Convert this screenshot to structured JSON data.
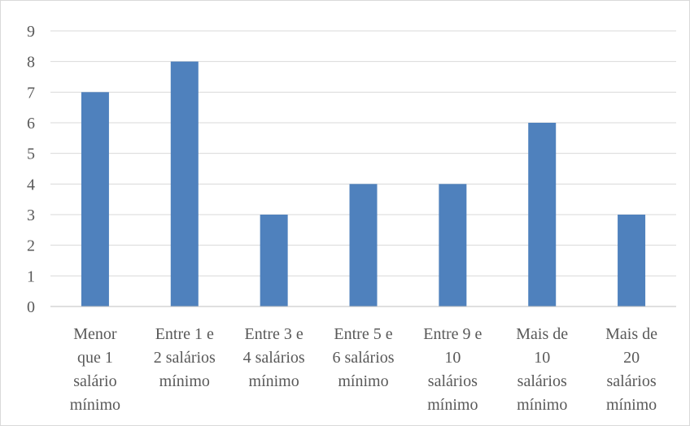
{
  "chart_data": {
    "type": "bar",
    "categories": [
      [
        "Menor",
        "que 1",
        "salário",
        "mínimo"
      ],
      [
        "Entre 1 e",
        "2 salários",
        "mínimo"
      ],
      [
        "Entre 3 e",
        "4 salários",
        "mínimo"
      ],
      [
        "Entre 5 e",
        "6 salários",
        "mínimo"
      ],
      [
        "Entre 9 e",
        "10",
        "salários",
        "mínimo"
      ],
      [
        "Mais de",
        "10",
        "salários",
        "mínimo"
      ],
      [
        "Mais de",
        "20",
        "salários",
        "mínimo"
      ]
    ],
    "values": [
      7,
      8,
      3,
      4,
      4,
      6,
      3
    ],
    "yticks": [
      "0",
      "1",
      "2",
      "3",
      "4",
      "5",
      "6",
      "7",
      "8",
      "9"
    ],
    "ylim": [
      0,
      9
    ],
    "grid": true,
    "legend": "none",
    "colors": {
      "bar": "#4f81bd",
      "grid": "#d9d9d9",
      "axis": "#bfbfbf",
      "text": "#595959"
    }
  }
}
